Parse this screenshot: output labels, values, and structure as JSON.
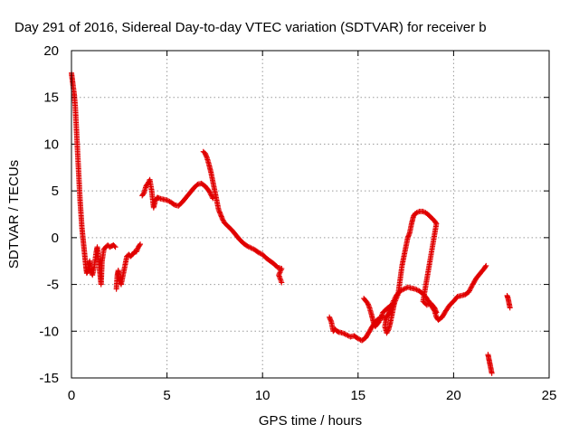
{
  "chart_data": {
    "type": "scatter",
    "title": "Day 291 of 2016, Sidereal Day-to-day VTEC variation (SDTVAR) for receiver b",
    "xlabel": "GPS time / hours",
    "ylabel": "SDTVAR / TECUs",
    "xlim": [
      0,
      25
    ],
    "ylim": [
      -15,
      20
    ],
    "xticks": [
      "0",
      "5",
      "10",
      "15",
      "20",
      "25"
    ],
    "yticks": [
      "-15",
      "-10",
      "-5",
      "0",
      "5",
      "10",
      "15",
      "20"
    ],
    "grid": true,
    "marker": "+",
    "color": "#e00000",
    "segments": [
      [
        [
          0.0,
          17.6
        ],
        [
          0.05,
          16.8
        ],
        [
          0.1,
          16.0
        ],
        [
          0.15,
          15.2
        ],
        [
          0.2,
          14.0
        ],
        [
          0.25,
          12.0
        ],
        [
          0.3,
          10.0
        ],
        [
          0.35,
          8.0
        ],
        [
          0.4,
          6.0
        ],
        [
          0.45,
          4.0
        ],
        [
          0.5,
          2.5
        ],
        [
          0.55,
          1.0
        ],
        [
          0.6,
          0.0
        ],
        [
          0.65,
          -1.0
        ],
        [
          0.7,
          -2.0
        ],
        [
          0.75,
          -3.0
        ],
        [
          0.8,
          -3.8
        ],
        [
          0.85,
          -3.6
        ],
        [
          0.9,
          -3.0
        ],
        [
          0.95,
          -2.5
        ],
        [
          1.0,
          -3.5
        ],
        [
          1.1,
          -4.0
        ],
        [
          1.2,
          -3.0
        ],
        [
          1.3,
          -1.5
        ],
        [
          1.35,
          -1.0
        ],
        [
          1.4,
          -2.0
        ],
        [
          1.45,
          -3.0
        ],
        [
          1.5,
          -4.0
        ],
        [
          1.55,
          -5.0
        ],
        [
          1.6,
          -2.5
        ],
        [
          1.7,
          -1.2
        ],
        [
          1.8,
          -1.0
        ],
        [
          1.9,
          -0.8
        ],
        [
          2.0,
          -1.0
        ],
        [
          2.1,
          -0.9
        ],
        [
          2.2,
          -0.8
        ],
        [
          2.3,
          -1.0
        ]
      ],
      [
        [
          2.35,
          -5.5
        ],
        [
          2.4,
          -4.0
        ],
        [
          2.45,
          -3.5
        ],
        [
          2.5,
          -4.5
        ],
        [
          2.6,
          -5.0
        ],
        [
          2.7,
          -4.0
        ],
        [
          2.8,
          -3.0
        ],
        [
          2.9,
          -2.0
        ],
        [
          3.0,
          -1.8
        ],
        [
          3.1,
          -2.0
        ],
        [
          3.2,
          -1.8
        ],
        [
          3.3,
          -1.5
        ],
        [
          3.4,
          -1.5
        ],
        [
          3.5,
          -1.0
        ],
        [
          3.6,
          -0.7
        ]
      ],
      [
        [
          3.7,
          4.5
        ],
        [
          3.8,
          4.8
        ],
        [
          3.9,
          5.5
        ],
        [
          4.0,
          5.8
        ],
        [
          4.1,
          6.2
        ],
        [
          4.2,
          5.0
        ],
        [
          4.3,
          3.2
        ],
        [
          4.4,
          4.0
        ],
        [
          4.5,
          4.3
        ],
        [
          4.6,
          4.2
        ],
        [
          4.8,
          4.1
        ],
        [
          5.0,
          4.0
        ],
        [
          5.2,
          3.8
        ],
        [
          5.4,
          3.5
        ],
        [
          5.6,
          3.4
        ],
        [
          5.8,
          3.8
        ],
        [
          6.0,
          4.3
        ],
        [
          6.2,
          4.8
        ],
        [
          6.4,
          5.3
        ],
        [
          6.6,
          5.7
        ],
        [
          6.8,
          5.8
        ],
        [
          7.0,
          5.5
        ],
        [
          7.2,
          5.0
        ],
        [
          7.4,
          4.2
        ]
      ],
      [
        [
          6.9,
          9.2
        ],
        [
          7.0,
          9.0
        ],
        [
          7.1,
          8.5
        ],
        [
          7.2,
          7.8
        ],
        [
          7.3,
          7.0
        ],
        [
          7.4,
          6.0
        ],
        [
          7.5,
          5.0
        ],
        [
          7.6,
          4.0
        ],
        [
          7.7,
          3.0
        ],
        [
          7.8,
          2.5
        ],
        [
          7.9,
          2.0
        ],
        [
          8.0,
          1.6
        ],
        [
          8.2,
          1.2
        ],
        [
          8.4,
          0.8
        ],
        [
          8.6,
          0.3
        ],
        [
          8.8,
          -0.2
        ],
        [
          9.0,
          -0.6
        ],
        [
          9.2,
          -0.9
        ],
        [
          9.4,
          -1.1
        ],
        [
          9.6,
          -1.3
        ],
        [
          9.8,
          -1.6
        ],
        [
          10.0,
          -1.8
        ],
        [
          10.2,
          -2.2
        ],
        [
          10.4,
          -2.5
        ],
        [
          10.6,
          -2.8
        ],
        [
          10.8,
          -3.2
        ],
        [
          11.0,
          -3.3
        ],
        [
          10.85,
          -4.0
        ],
        [
          11.0,
          -4.8
        ]
      ],
      [
        [
          13.5,
          -8.5
        ],
        [
          13.6,
          -9.0
        ],
        [
          13.7,
          -10.0
        ],
        [
          13.8,
          -9.8
        ],
        [
          13.9,
          -10.0
        ],
        [
          14.0,
          -10.1
        ],
        [
          14.2,
          -10.2
        ],
        [
          14.4,
          -10.4
        ],
        [
          14.6,
          -10.6
        ],
        [
          14.8,
          -10.5
        ],
        [
          15.0,
          -10.8
        ],
        [
          15.2,
          -11.0
        ],
        [
          15.4,
          -10.7
        ],
        [
          15.6,
          -10.0
        ],
        [
          15.8,
          -9.3
        ],
        [
          16.0,
          -8.8
        ],
        [
          16.2,
          -8.5
        ],
        [
          16.4,
          -8.6
        ],
        [
          16.6,
          -8.2
        ],
        [
          16.8,
          -7.0
        ],
        [
          17.0,
          -6.2
        ],
        [
          17.2,
          -5.7
        ],
        [
          17.4,
          -5.5
        ],
        [
          17.6,
          -5.3
        ],
        [
          17.8,
          -5.4
        ],
        [
          18.0,
          -5.5
        ],
        [
          18.2,
          -5.7
        ],
        [
          18.4,
          -6.0
        ],
        [
          18.6,
          -6.5
        ],
        [
          18.8,
          -7.2
        ],
        [
          19.0,
          -7.8
        ],
        [
          19.1,
          -8.5
        ],
        [
          19.2,
          -8.8
        ],
        [
          19.4,
          -8.5
        ],
        [
          19.6,
          -7.8
        ],
        [
          19.8,
          -7.2
        ],
        [
          20.0,
          -6.8
        ],
        [
          20.2,
          -6.3
        ],
        [
          20.4,
          -6.2
        ],
        [
          20.6,
          -6.1
        ],
        [
          20.8,
          -5.8
        ],
        [
          21.0,
          -5.0
        ],
        [
          21.2,
          -4.3
        ],
        [
          21.4,
          -3.8
        ],
        [
          21.6,
          -3.3
        ],
        [
          21.7,
          -3.0
        ]
      ],
      [
        [
          15.3,
          -6.5
        ],
        [
          15.5,
          -7.0
        ],
        [
          15.6,
          -7.5
        ],
        [
          15.7,
          -8.2
        ],
        [
          15.8,
          -9.0
        ],
        [
          15.9,
          -9.5
        ],
        [
          16.1,
          -9.0
        ],
        [
          16.3,
          -8.0
        ],
        [
          16.5,
          -7.6
        ],
        [
          16.7,
          -7.3
        ],
        [
          16.9,
          -7.0
        ],
        [
          16.8,
          -8.0
        ],
        [
          16.7,
          -9.0
        ],
        [
          16.6,
          -9.8
        ],
        [
          16.5,
          -10.2
        ],
        [
          16.4,
          -9.5
        ],
        [
          16.5,
          -8.5
        ],
        [
          16.7,
          -7.8
        ],
        [
          16.9,
          -7.0
        ],
        [
          17.1,
          -6.0
        ],
        [
          17.2,
          -4.5
        ],
        [
          17.3,
          -3.0
        ],
        [
          17.4,
          -2.0
        ],
        [
          17.5,
          -1.0
        ],
        [
          17.6,
          0.0
        ],
        [
          17.7,
          0.5
        ],
        [
          17.8,
          1.5
        ],
        [
          17.9,
          2.3
        ],
        [
          18.0,
          2.6
        ],
        [
          18.2,
          2.8
        ],
        [
          18.4,
          2.8
        ],
        [
          18.6,
          2.6
        ],
        [
          18.8,
          2.2
        ],
        [
          19.0,
          1.8
        ],
        [
          19.1,
          1.5
        ],
        [
          18.4,
          -6.8
        ],
        [
          18.6,
          -7.2
        ],
        [
          18.8,
          -7.0
        ],
        [
          19.0,
          -7.5
        ],
        [
          19.1,
          -8.0
        ]
      ],
      [
        [
          21.8,
          -12.5
        ],
        [
          21.85,
          -13.0
        ],
        [
          21.9,
          -13.5
        ],
        [
          21.95,
          -14.0
        ],
        [
          22.0,
          -14.5
        ]
      ],
      [
        [
          22.8,
          -6.2
        ],
        [
          22.85,
          -6.5
        ],
        [
          22.9,
          -7.0
        ],
        [
          22.95,
          -7.5
        ]
      ]
    ]
  }
}
